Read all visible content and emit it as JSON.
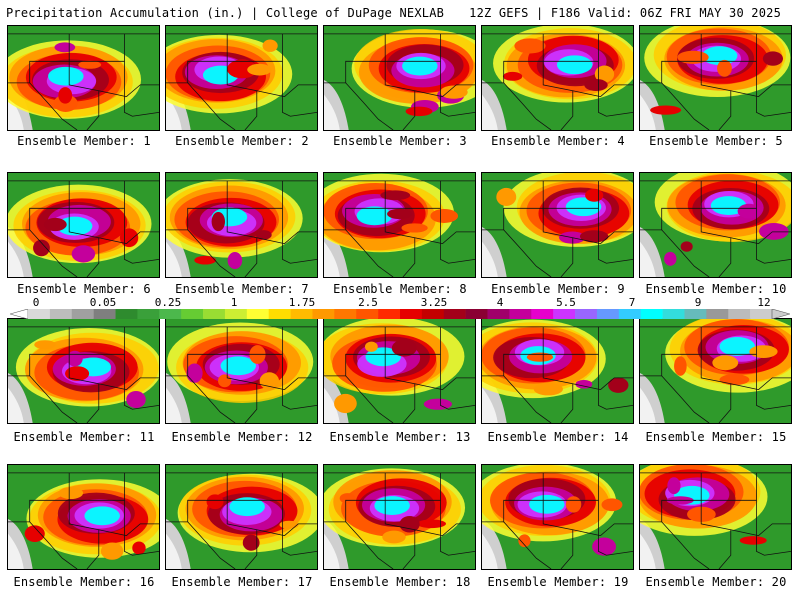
{
  "header": {
    "title": "Precipitation Accumulation (in.) | College of DuPage NEXLAB",
    "run": "12Z GEFS | F186 Valid: 06Z FRI MAY 30 2025"
  },
  "members": [
    {
      "label": "Ensemble Member: 1"
    },
    {
      "label": "Ensemble Member: 2"
    },
    {
      "label": "Ensemble Member: 3"
    },
    {
      "label": "Ensemble Member: 4"
    },
    {
      "label": "Ensemble Member: 5"
    },
    {
      "label": "Ensemble Member: 6"
    },
    {
      "label": "Ensemble Member: 7"
    },
    {
      "label": "Ensemble Member: 8"
    },
    {
      "label": "Ensemble Member: 9"
    },
    {
      "label": "Ensemble Member: 10"
    },
    {
      "label": "Ensemble Member: 11"
    },
    {
      "label": "Ensemble Member: 12"
    },
    {
      "label": "Ensemble Member: 13"
    },
    {
      "label": "Ensemble Member: 14"
    },
    {
      "label": "Ensemble Member: 15"
    },
    {
      "label": "Ensemble Member: 16"
    },
    {
      "label": "Ensemble Member: 17"
    },
    {
      "label": "Ensemble Member: 18"
    },
    {
      "label": "Ensemble Member: 19"
    },
    {
      "label": "Ensemble Member: 20"
    }
  ],
  "colorbar": {
    "tick_labels": [
      "0",
      "0.05",
      "0.25",
      "1",
      "1.75",
      "2.5",
      "3.25",
      "4",
      "5.5",
      "7",
      "9",
      "12"
    ],
    "colors": [
      "#d9d9d9",
      "#bdbdbd",
      "#a0a0a0",
      "#7f7f7f",
      "#2e8b2e",
      "#3aa03a",
      "#4cb84c",
      "#66cc33",
      "#99dd33",
      "#ccee33",
      "#ffff33",
      "#ffdd00",
      "#ffbb00",
      "#ff9900",
      "#ff7700",
      "#ff5500",
      "#ff2a00",
      "#e60000",
      "#c40000",
      "#a3001a",
      "#8b0033",
      "#a0006a",
      "#c4009c",
      "#e600cc",
      "#cc33ff",
      "#9966ff",
      "#6699ff",
      "#33ccff",
      "#00ffff",
      "#33dddd",
      "#66bbbb",
      "#999999",
      "#bbbbbb",
      "#cccccc"
    ]
  }
}
